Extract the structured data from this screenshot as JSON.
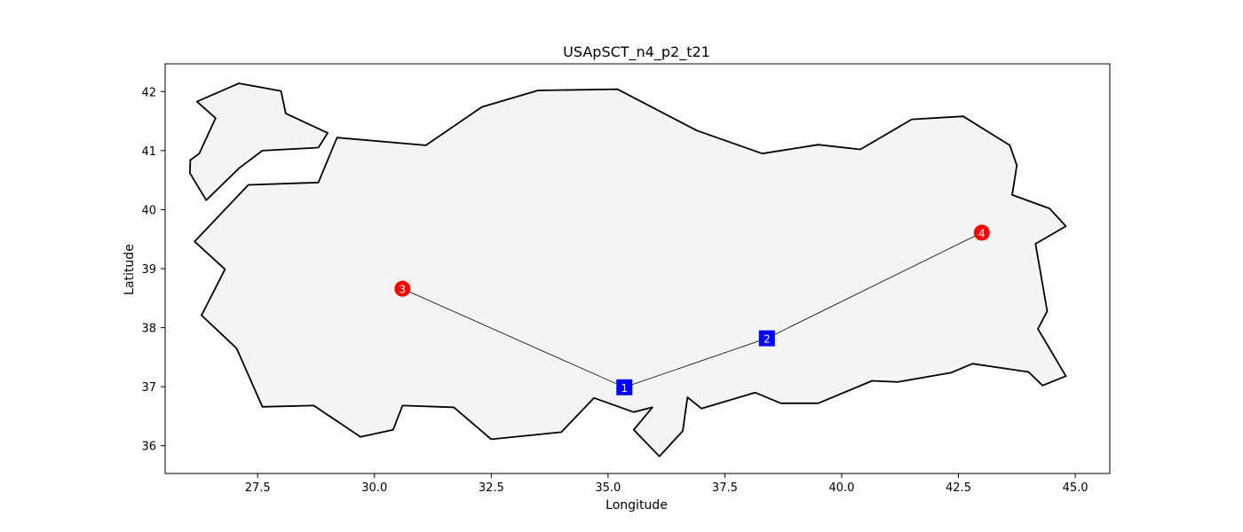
{
  "chart_data": {
    "type": "scatter",
    "title": "USApSCT_n4_p2_t21",
    "xlabel": "Longitude",
    "ylabel": "Latitude",
    "xlim": [
      25.52,
      45.74
    ],
    "ylim": [
      35.53,
      42.47
    ],
    "x_ticks": [
      27.5,
      30.0,
      32.5,
      35.0,
      37.5,
      40.0,
      42.5,
      45.0
    ],
    "x_tick_labels": [
      "27.5",
      "30.0",
      "32.5",
      "35.0",
      "37.5",
      "40.0",
      "42.5",
      "45.0"
    ],
    "y_ticks": [
      36,
      37,
      38,
      39,
      40,
      41,
      42
    ],
    "y_tick_labels": [
      "36",
      "37",
      "38",
      "39",
      "40",
      "41",
      "42"
    ],
    "grid": false,
    "colors": {
      "land_fill": "#f4f4f4",
      "land_edge": "#000000",
      "square_marker": "#0000ff",
      "circle_marker": "#ff0000",
      "route_line": "#000000"
    },
    "outlines": [
      [
        [
          26.2,
          41.83
        ],
        [
          27.1,
          42.14
        ],
        [
          28.0,
          42.01
        ],
        [
          28.1,
          41.63
        ],
        [
          29.0,
          41.3
        ],
        [
          28.8,
          41.05
        ],
        [
          27.6,
          41.0
        ],
        [
          27.1,
          40.7
        ],
        [
          26.4,
          40.16
        ],
        [
          26.05,
          40.62
        ],
        [
          26.06,
          40.84
        ],
        [
          26.25,
          40.95
        ],
        [
          26.6,
          41.55
        ],
        [
          26.2,
          41.83
        ]
      ],
      [
        [
          29.2,
          41.22
        ],
        [
          31.1,
          41.09
        ],
        [
          32.3,
          41.74
        ],
        [
          33.5,
          42.02
        ],
        [
          35.2,
          42.04
        ],
        [
          36.9,
          41.34
        ],
        [
          38.3,
          40.95
        ],
        [
          39.5,
          41.1
        ],
        [
          40.4,
          41.02
        ],
        [
          41.5,
          41.53
        ],
        [
          42.6,
          41.58
        ],
        [
          43.6,
          41.09
        ],
        [
          43.75,
          40.75
        ],
        [
          43.65,
          40.25
        ],
        [
          44.45,
          40.02
        ],
        [
          44.8,
          39.72
        ],
        [
          44.15,
          39.42
        ],
        [
          44.4,
          38.28
        ],
        [
          44.2,
          37.98
        ],
        [
          44.8,
          37.18
        ],
        [
          44.3,
          37.02
        ],
        [
          44.0,
          37.25
        ],
        [
          42.8,
          37.39
        ],
        [
          42.35,
          37.24
        ],
        [
          41.2,
          37.08
        ],
        [
          40.65,
          37.1
        ],
        [
          39.5,
          36.72
        ],
        [
          38.7,
          36.72
        ],
        [
          38.15,
          36.9
        ],
        [
          37.0,
          36.63
        ],
        [
          36.7,
          36.82
        ],
        [
          36.6,
          36.25
        ],
        [
          36.1,
          35.82
        ],
        [
          35.55,
          36.27
        ],
        [
          35.95,
          36.65
        ],
        [
          35.55,
          36.57
        ],
        [
          34.7,
          36.81
        ],
        [
          34.0,
          36.23
        ],
        [
          32.5,
          36.11
        ],
        [
          31.7,
          36.65
        ],
        [
          30.6,
          36.68
        ],
        [
          30.4,
          36.27
        ],
        [
          29.7,
          36.15
        ],
        [
          28.7,
          36.68
        ],
        [
          27.6,
          36.66
        ],
        [
          27.05,
          37.65
        ],
        [
          26.3,
          38.21
        ],
        [
          26.8,
          38.99
        ],
        [
          26.15,
          39.46
        ],
        [
          27.3,
          40.42
        ],
        [
          28.8,
          40.46
        ],
        [
          29.2,
          41.22
        ]
      ]
    ],
    "points": [
      {
        "label": "1",
        "x": 35.35,
        "y": 36.99,
        "shape": "square"
      },
      {
        "label": "2",
        "x": 38.4,
        "y": 37.82,
        "shape": "square"
      },
      {
        "label": "3",
        "x": 30.6,
        "y": 38.66,
        "shape": "circle"
      },
      {
        "label": "4",
        "x": 43.0,
        "y": 39.61,
        "shape": "circle"
      }
    ],
    "routes": [
      [
        "3",
        "1"
      ],
      [
        "1",
        "2"
      ],
      [
        "2",
        "4"
      ]
    ]
  }
}
